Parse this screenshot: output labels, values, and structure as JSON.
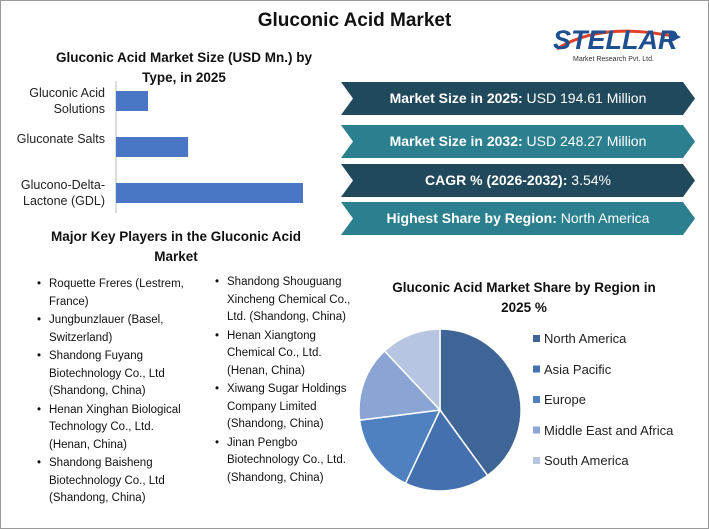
{
  "title": "Gluconic Acid Market",
  "logo": {
    "name": "STELLAR",
    "tagline": "Market Research Pvt. Ltd."
  },
  "chart_data": [
    {
      "type": "bar",
      "orientation": "horizontal",
      "title": "Gluconic Acid Market Size (USD Mn.) by Type, in 2025",
      "categories": [
        "Gluconic Acid Solutions",
        "Gluconate Salts",
        "Glucono-Delta-Lactone (GDL)"
      ],
      "values": [
        21.4,
        48.2,
        125.0
      ],
      "color": "#4a76c6"
    },
    {
      "type": "pie",
      "title": "Gluconic Acid Market Share by Region in 2025 %",
      "categories": [
        "North America",
        "Asia Pacific",
        "Europe",
        "Middle East and Africa",
        "South America"
      ],
      "values": [
        40,
        17,
        16,
        15,
        12
      ],
      "colors": [
        "#3f6496",
        "#4470ad",
        "#4f80c0",
        "#8aa5d3",
        "#b7c5e1"
      ]
    }
  ],
  "info_boxes": [
    {
      "label": "Market Size in 2025:",
      "value": "USD 194.61 Million"
    },
    {
      "label": "Market Size in 2032:",
      "value": "USD 248.27 Million"
    },
    {
      "label": "CAGR % (2026-2032):",
      "value": "3.54%"
    },
    {
      "label": "Highest Share by Region:",
      "value": "North America"
    }
  ],
  "key_players": {
    "title": "Major Key Players in the Gluconic Acid Market",
    "columns": [
      [
        "Roquette Freres (Lestrem, France)",
        "Jungbunzlauer (Basel, Switzerland)",
        "Shandong Fuyang Biotechnology Co., Ltd (Shandong, China)",
        "Henan Xinghan Biological Technology Co., Ltd. (Henan, China)",
        "Shandong Baisheng Biotechnology Co., Ltd (Shandong, China)"
      ],
      [
        "Shandong Shouguang Xincheng Chemical Co., Ltd. (Shandong, China)",
        "Henan Xiangtong Chemical Co., Ltd. (Henan, China)",
        "Xiwang Sugar Holdings Company Limited (Shandong, China)",
        "Jinan Pengbo Biotechnology Co., Ltd. (Shandong, China)"
      ]
    ]
  }
}
